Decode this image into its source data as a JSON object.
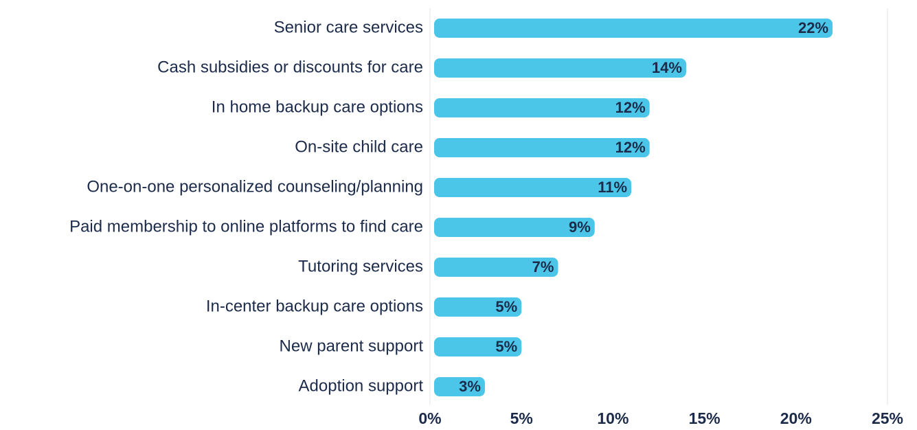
{
  "chart_data": {
    "type": "bar",
    "orientation": "horizontal",
    "categories": [
      "Senior care services",
      "Cash subsidies or discounts for care",
      "In home backup care options",
      "On-site child care",
      "One-on-one personalized counseling/planning",
      "Paid membership to online platforms to find care",
      "Tutoring services",
      "In-center backup care options",
      "New parent support",
      "Adoption support"
    ],
    "values": [
      22,
      14,
      12,
      12,
      11,
      9,
      7,
      5,
      5,
      3
    ],
    "value_labels": [
      "22%",
      "14%",
      "12%",
      "12%",
      "11%",
      "9%",
      "7%",
      "5%",
      "5%",
      "3%"
    ],
    "color": "#4bc6e8",
    "xlim": [
      0,
      25
    ],
    "xticks": [
      {
        "value": 0,
        "label": "0%"
      },
      {
        "value": 5,
        "label": "5%"
      },
      {
        "value": 10,
        "label": "10%"
      },
      {
        "value": 15,
        "label": "15%"
      },
      {
        "value": 20,
        "label": "20%"
      },
      {
        "value": 25,
        "label": "25%"
      }
    ],
    "grid": false
  }
}
